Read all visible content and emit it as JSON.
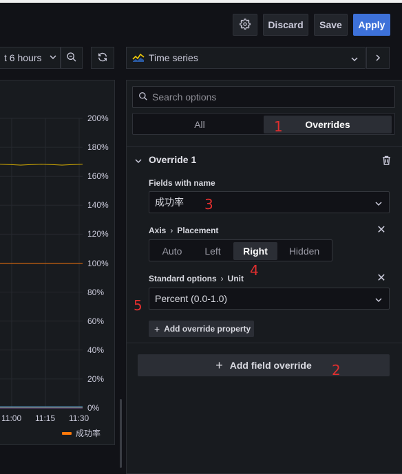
{
  "toolbar": {
    "discard_label": "Discard",
    "save_label": "Save",
    "apply_label": "Apply"
  },
  "time_range": {
    "label": "t 6 hours"
  },
  "visualization": {
    "label": "Time series"
  },
  "chart_data": {
    "type": "line",
    "series": [
      {
        "name": "成功率",
        "color": "#ff780a",
        "values": [
          1.0,
          1.0,
          1.0,
          1.0,
          1.0
        ]
      },
      {
        "color": "#e0b400",
        "values": [
          1.68,
          1.68,
          1.68,
          1.68,
          1.68
        ]
      }
    ],
    "y_ticks": [
      "200%",
      "180%",
      "160%",
      "140%",
      "120%",
      "100%",
      "80%",
      "60%",
      "40%",
      "20%",
      "0%"
    ],
    "x_ticks": [
      "11:00",
      "11:15",
      "11:30"
    ],
    "ylim": [
      0,
      2
    ],
    "y_axis_side": "right",
    "grid": true,
    "legend_position": "bottom"
  },
  "options": {
    "search_placeholder": "Search options",
    "tabs": {
      "all": "All",
      "overrides": "Overrides"
    },
    "override": {
      "title": "Override 1",
      "matcher_label": "Fields with name",
      "matcher_value": "成功率",
      "axis_label": {
        "group": "Axis",
        "name": "Placement"
      },
      "placement_options": [
        "Auto",
        "Left",
        "Right",
        "Hidden"
      ],
      "placement_selected": "Right",
      "unit_label": {
        "group": "Standard options",
        "name": "Unit"
      },
      "unit_value": "Percent (0.0-1.0)",
      "add_property_label": "Add override property"
    },
    "add_field_override_label": "Add field override"
  },
  "annotations": [
    "1",
    "2",
    "3",
    "4",
    "5"
  ]
}
